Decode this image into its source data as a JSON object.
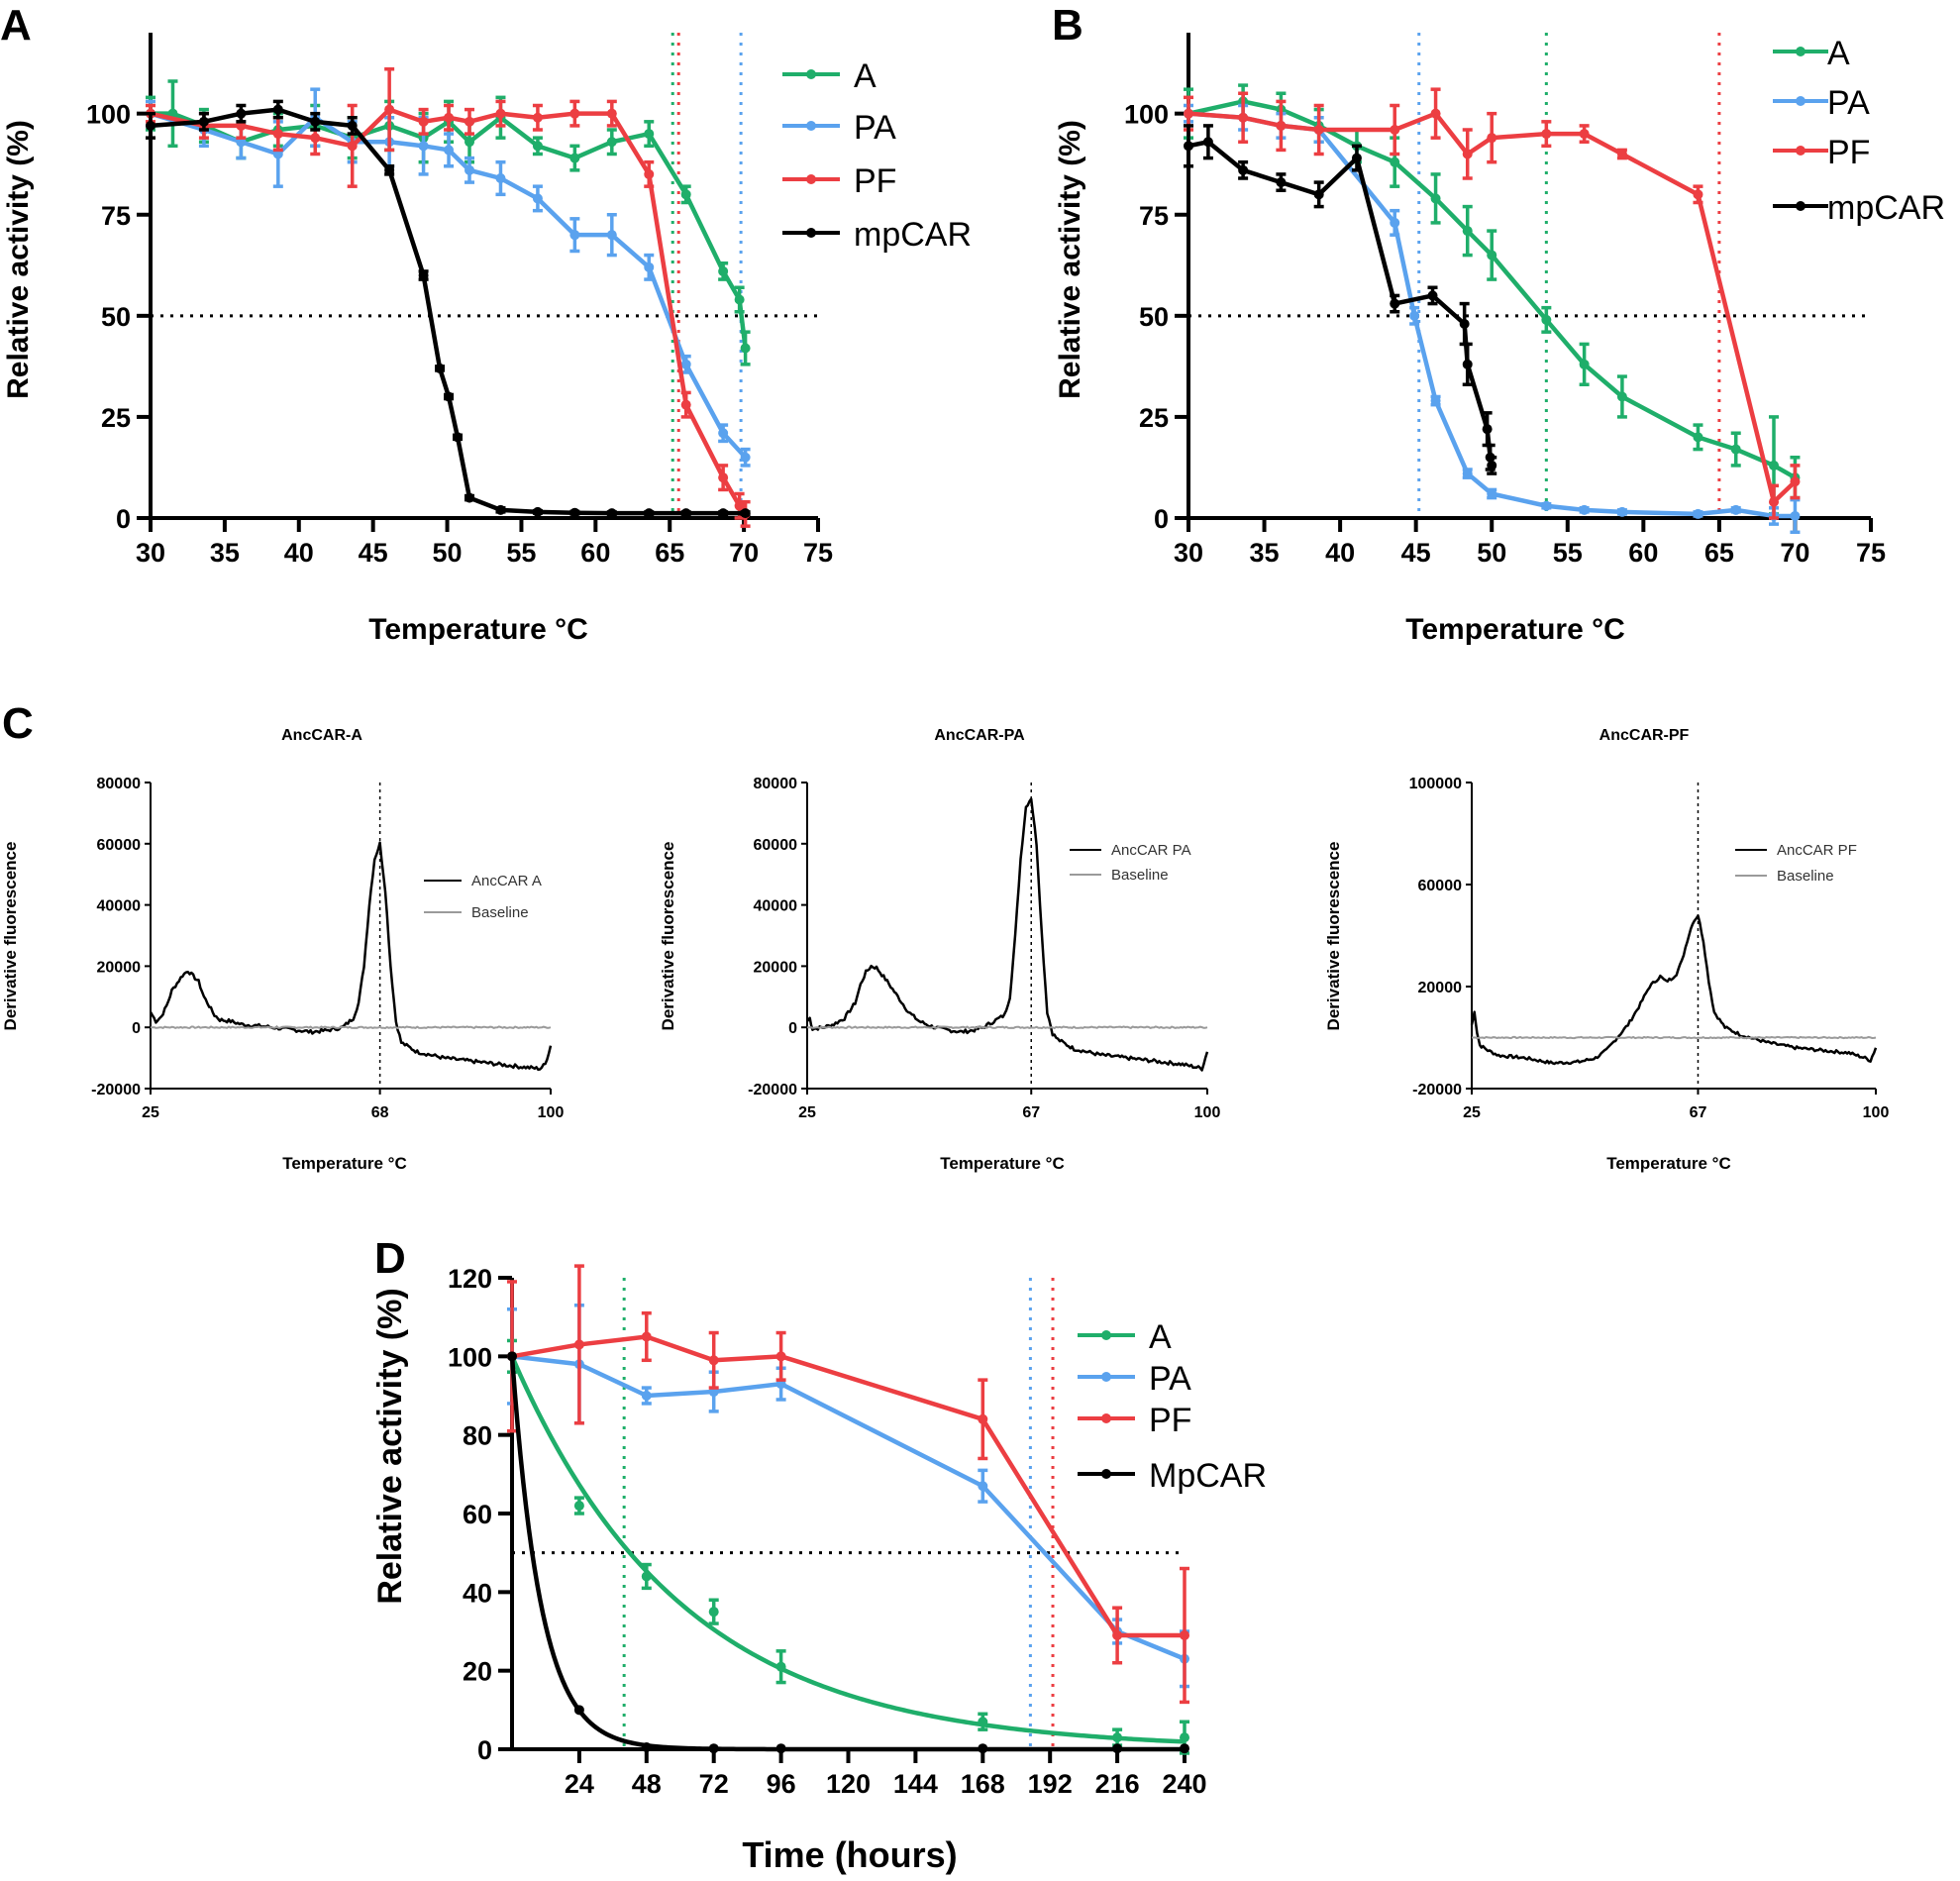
{
  "panel_labels": {
    "a": "A",
    "b": "B",
    "c": "C",
    "d": "D"
  },
  "colors": {
    "A": "#1fae6a",
    "PA": "#5aa2ee",
    "PF": "#ec3e42",
    "black": "#000000",
    "baseline": "#9a9a9a"
  },
  "chart_data": [
    {
      "id": "A",
      "type": "line",
      "xlabel": "Temperature  °C",
      "ylabel": "Relative activity (%)",
      "xlim": [
        30,
        75
      ],
      "ylim": [
        0,
        120
      ],
      "xticks": [
        "30",
        "35",
        "40",
        "45",
        "50",
        "55",
        "60",
        "65",
        "70",
        "75"
      ],
      "yticks": [
        "0",
        "25",
        "50",
        "75",
        "100"
      ],
      "hline": 50,
      "vlines": [
        {
          "x": 65.2,
          "color": "#1fae6a"
        },
        {
          "x": 65.6,
          "color": "#ec3e42"
        },
        {
          "x": 69.8,
          "color": "#5aa2ee"
        }
      ],
      "legend": [
        "A",
        "PA",
        "PF",
        "mpCAR"
      ],
      "series": [
        {
          "name": "A",
          "color": "#1fae6a",
          "x": [
            30,
            31.5,
            33.6,
            36.1,
            38.6,
            41.1,
            43.6,
            46.1,
            48.4,
            50.1,
            51.5,
            53.6,
            56.1,
            58.6,
            61.1,
            63.6,
            66.1,
            68.6,
            69.7,
            70.1
          ],
          "y": [
            100,
            100,
            97,
            93,
            96,
            97,
            94,
            97,
            94,
            98,
            93,
            99,
            92,
            89,
            93,
            95,
            80,
            61,
            54,
            42
          ],
          "err": [
            4,
            8,
            4,
            4,
            4,
            5,
            5,
            6,
            6,
            5,
            5,
            5,
            2,
            3,
            3,
            3,
            2,
            2,
            3,
            4
          ]
        },
        {
          "name": "PA",
          "color": "#5aa2ee",
          "x": [
            30,
            33.6,
            36.1,
            38.6,
            41.1,
            43.6,
            46.1,
            48.4,
            50.1,
            51.5,
            53.6,
            56.1,
            58.6,
            61.1,
            63.6,
            66.1,
            68.6,
            70.1
          ],
          "y": [
            100,
            96,
            93,
            90,
            99,
            93,
            93,
            92,
            91,
            86,
            84,
            79,
            70,
            70,
            62,
            38,
            21,
            15
          ],
          "err": [
            3,
            4,
            4,
            8,
            7,
            5,
            6,
            7,
            4,
            3,
            4,
            3,
            4,
            5,
            3,
            2,
            2,
            2
          ]
        },
        {
          "name": "PF",
          "color": "#ec3e42",
          "x": [
            30,
            33.6,
            36.1,
            38.6,
            41.1,
            43.6,
            46.1,
            48.4,
            50.1,
            51.5,
            53.6,
            56.1,
            58.6,
            61.1,
            63.6,
            66.1,
            68.6,
            69.7,
            70.1
          ],
          "y": [
            100,
            97,
            97,
            95,
            94,
            92,
            101,
            98,
            99,
            98,
            100,
            99,
            100,
            100,
            85,
            28,
            10,
            3,
            1
          ],
          "err": [
            2,
            3,
            3,
            4,
            4,
            10,
            10,
            3,
            3,
            3,
            3,
            3,
            3,
            3,
            3,
            3,
            3,
            3,
            3
          ]
        },
        {
          "name": "mpCAR",
          "color": "#000000",
          "x": [
            30,
            33.6,
            36.1,
            38.6,
            41.1,
            43.6,
            46.1,
            48.4,
            49.5,
            50.1,
            50.7,
            51.5,
            53.6,
            56.1,
            58.6,
            61.1,
            63.6,
            66.1,
            68.6,
            70.1
          ],
          "y": [
            97,
            98,
            100,
            101,
            98,
            97,
            86,
            60,
            37,
            30,
            20,
            5,
            2,
            1.5,
            1.3,
            1.2,
            1.2,
            1.2,
            1.2,
            1.2
          ],
          "err": [
            3,
            2,
            2,
            2,
            2,
            2,
            1,
            1,
            0.5,
            0.5,
            0.5,
            0.5,
            0.5,
            0.3,
            0.3,
            0.3,
            0.3,
            0.3,
            0.3,
            0.3
          ]
        }
      ]
    },
    {
      "id": "B",
      "type": "line",
      "xlabel": "Temperature  °C",
      "ylabel": "Relative activity (%)",
      "xlim": [
        30,
        75
      ],
      "ylim": [
        0,
        120
      ],
      "xticks": [
        "30",
        "35",
        "40",
        "45",
        "50",
        "55",
        "60",
        "65",
        "70",
        "75"
      ],
      "yticks": [
        "0",
        "25",
        "50",
        "75",
        "100"
      ],
      "hline": 50,
      "vlines": [
        {
          "x": 45.2,
          "color": "#5aa2ee"
        },
        {
          "x": 53.6,
          "color": "#1fae6a"
        },
        {
          "x": 65,
          "color": "#ec3e42"
        }
      ],
      "legend": [
        "A",
        "PA",
        "PF",
        "mpCAR"
      ],
      "series": [
        {
          "name": "A",
          "color": "#1fae6a",
          "x": [
            30,
            33.6,
            36.1,
            38.6,
            41.1,
            43.6,
            46.3,
            48.4,
            50,
            53.6,
            56.1,
            58.6,
            63.6,
            66.1,
            68.6,
            70
          ],
          "y": [
            100,
            103,
            101,
            97,
            92,
            88,
            79,
            71,
            65,
            49,
            38,
            30,
            20,
            17,
            13,
            10
          ],
          "err": [
            6,
            4,
            4,
            4,
            4,
            6,
            6,
            6,
            6,
            3,
            5,
            5,
            3,
            4,
            12,
            5
          ]
        },
        {
          "name": "PA",
          "color": "#5aa2ee",
          "x": [
            30,
            33.6,
            36.1,
            38.6,
            43.6,
            44.9,
            46.3,
            48.4,
            50,
            53.6,
            56.1,
            58.6,
            63.6,
            66.1,
            68.6,
            70
          ],
          "y": [
            100,
            99,
            97,
            96,
            73,
            50,
            29,
            11,
            6,
            3,
            2,
            1.5,
            1,
            2,
            0.5,
            0.5
          ],
          "err": [
            2,
            3,
            3,
            3,
            3,
            2,
            1,
            1,
            1,
            0.5,
            0.5,
            0.5,
            0.5,
            0.5,
            2,
            4
          ]
        },
        {
          "name": "PF",
          "color": "#ec3e42",
          "x": [
            30,
            33.6,
            36.1,
            38.6,
            43.6,
            46.3,
            48.4,
            50,
            53.6,
            56.1,
            58.6,
            63.6,
            68.6,
            70
          ],
          "y": [
            100,
            99,
            97,
            96,
            96,
            100,
            90,
            94,
            95,
            95,
            90,
            80,
            4,
            9
          ],
          "err": [
            4,
            6,
            6,
            6,
            6,
            6,
            6,
            6,
            3,
            2,
            1,
            2,
            4,
            4
          ]
        },
        {
          "name": "mpCAR",
          "color": "#000000",
          "x": [
            30,
            31.3,
            33.6,
            36.1,
            38.6,
            41.1,
            43.6,
            46.1,
            48.2,
            48.4,
            49.7,
            49.9,
            50
          ],
          "y": [
            92,
            93,
            86,
            83,
            80,
            89,
            53,
            55,
            48,
            38,
            22,
            15,
            13
          ],
          "err": [
            5,
            4,
            2,
            2,
            3,
            3,
            2,
            2,
            5,
            5,
            4,
            3,
            2
          ]
        }
      ]
    },
    {
      "id": "C1",
      "type": "line",
      "title": "AncCAR-A",
      "xlabel": "Temperature °C",
      "ylabel": "Derivative fluorescence",
      "xlim": [
        25,
        100
      ],
      "ylim": [
        -20000,
        80000
      ],
      "xticks": [
        "25",
        "68",
        "100"
      ],
      "yticks": [
        "-20000",
        "0",
        "20000",
        "40000",
        "60000",
        "80000"
      ],
      "peak_x": 68,
      "peak_y": 60000,
      "vline": 68,
      "legend": [
        "AncCAR A",
        "Baseline"
      ],
      "series": [
        {
          "name": "AncCAR A",
          "color": "#000000",
          "x": [
            25,
            26,
            27,
            28,
            29,
            31,
            32,
            34,
            35,
            36,
            37,
            38,
            40,
            42,
            45,
            48,
            50,
            53,
            55,
            58,
            61,
            63,
            64,
            65,
            66,
            67,
            68,
            69,
            70,
            71,
            72,
            75,
            80,
            85,
            90,
            95,
            98,
            99,
            100
          ],
          "y": [
            5000,
            2000,
            3500,
            7000,
            12000,
            17000,
            18500,
            15000,
            10000,
            7000,
            4000,
            2500,
            2000,
            1000,
            500,
            0,
            -500,
            -1000,
            -1500,
            -1000,
            0,
            3000,
            8000,
            20000,
            40000,
            55000,
            60000,
            45000,
            20000,
            2000,
            -5000,
            -8000,
            -10000,
            -11000,
            -12000,
            -13000,
            -13500,
            -12000,
            -6000
          ]
        },
        {
          "name": "Baseline",
          "color": "#9a9a9a",
          "x": [
            25,
            100
          ],
          "y": [
            0,
            0
          ]
        }
      ]
    },
    {
      "id": "C2",
      "type": "line",
      "title": "AncCAR-PA",
      "xlabel": "Temperature °C",
      "ylabel": "Derivative fluorescence",
      "xlim": [
        25,
        100
      ],
      "ylim": [
        -20000,
        80000
      ],
      "xticks": [
        "25",
        "67",
        "100"
      ],
      "yticks": [
        "-20000",
        "0",
        "20000",
        "40000",
        "60000",
        "80000"
      ],
      "peak_x": 67,
      "peak_y": 75000,
      "vline": 67,
      "legend": [
        "AncCAR PA",
        "Baseline"
      ],
      "series": [
        {
          "name": "AncCAR PA",
          "color": "#000000",
          "x": [
            25,
            25.5,
            26,
            28,
            30,
            32,
            34,
            35,
            36,
            37,
            38,
            40,
            42,
            44,
            46,
            48,
            50,
            52,
            54,
            56,
            58,
            60,
            62,
            63,
            64,
            65,
            66,
            67,
            68,
            69,
            70,
            71,
            72,
            75,
            80,
            85,
            90,
            95,
            98,
            99,
            100
          ],
          "y": [
            2000,
            3000,
            -500,
            0,
            1000,
            3000,
            8000,
            14000,
            18000,
            20000,
            19500,
            15000,
            10000,
            5000,
            2000,
            500,
            -500,
            -1000,
            -1500,
            -1000,
            0,
            2000,
            4000,
            10000,
            30000,
            55000,
            72000,
            75000,
            60000,
            30000,
            5000,
            -2000,
            -4000,
            -7000,
            -9000,
            -10000,
            -11000,
            -12000,
            -13000,
            -13500,
            -8000
          ]
        },
        {
          "name": "Baseline",
          "color": "#9a9a9a",
          "x": [
            25,
            100
          ],
          "y": [
            0,
            0
          ]
        }
      ]
    },
    {
      "id": "C3",
      "type": "line",
      "title": "AncCAR-PF",
      "xlabel": "Temperature °C",
      "ylabel": "Derivative fluorescence",
      "xlim": [
        25,
        100
      ],
      "ylim": [
        -20000,
        100000
      ],
      "xticks": [
        "25",
        "67",
        "100"
      ],
      "yticks": [
        "-20000",
        "20000",
        "60000",
        "100000"
      ],
      "peak_x": 67,
      "peak_y": 48000,
      "vline": 67,
      "legend": [
        "AncCAR PF",
        "Baseline"
      ],
      "series": [
        {
          "name": "AncCAR PF",
          "color": "#000000",
          "x": [
            25,
            25.5,
            26,
            26.5,
            28,
            30,
            35,
            40,
            45,
            48,
            50,
            52,
            54,
            56,
            58,
            60,
            61,
            62,
            63,
            64,
            65,
            66,
            67,
            68,
            69,
            70,
            72,
            75,
            80,
            85,
            90,
            95,
            98,
            99,
            100
          ],
          "y": [
            5000,
            10000,
            2000,
            -3000,
            -5000,
            -7000,
            -8000,
            -10000,
            -9500,
            -8000,
            -5000,
            0,
            5000,
            12000,
            20000,
            24000,
            22000,
            23000,
            25000,
            30000,
            38000,
            45000,
            48000,
            38000,
            22000,
            10000,
            4000,
            1000,
            -2000,
            -4000,
            -5000,
            -6000,
            -8000,
            -9000,
            -4000
          ]
        },
        {
          "name": "Baseline",
          "color": "#9a9a9a",
          "x": [
            25,
            100
          ],
          "y": [
            0,
            0
          ]
        }
      ]
    },
    {
      "id": "D",
      "type": "line",
      "xlabel": "Time (hours)",
      "ylabel": "Relative activity (%)",
      "xlim": [
        0,
        240
      ],
      "ylim": [
        0,
        120
      ],
      "xticks": [
        "24",
        "48",
        "72",
        "96",
        "120",
        "144",
        "168",
        "192",
        "216",
        "240"
      ],
      "yticks": [
        "0",
        "20",
        "40",
        "60",
        "80",
        "100",
        "120"
      ],
      "hline": 50,
      "vlines": [
        {
          "x": 40,
          "color": "#1fae6a"
        },
        {
          "x": 185,
          "color": "#5aa2ee"
        },
        {
          "x": 193,
          "color": "#ec3e42"
        }
      ],
      "legend": [
        "A",
        "PA",
        "PF",
        "MpCAR"
      ],
      "series": [
        {
          "name": "A",
          "color": "#1fae6a",
          "fit": "exp",
          "x": [
            0,
            24,
            48,
            72,
            96,
            168,
            216,
            240
          ],
          "y": [
            100,
            62,
            44,
            35,
            21,
            7,
            3,
            3
          ],
          "err": [
            4,
            2,
            3,
            3,
            4,
            2,
            2,
            4
          ]
        },
        {
          "name": "PA",
          "color": "#5aa2ee",
          "x": [
            0,
            24,
            48,
            72,
            96,
            168,
            216,
            240
          ],
          "y": [
            100,
            98,
            90,
            91,
            93,
            67,
            30,
            23
          ],
          "err": [
            12,
            15,
            2,
            5,
            4,
            4,
            3,
            7
          ]
        },
        {
          "name": "PF",
          "color": "#ec3e42",
          "x": [
            0,
            24,
            48,
            72,
            96,
            168,
            216,
            240
          ],
          "y": [
            100,
            103,
            105,
            99,
            100,
            84,
            29,
            29
          ],
          "err": [
            19,
            20,
            6,
            7,
            6,
            10,
            7,
            17
          ]
        },
        {
          "name": "MpCAR",
          "color": "#000000",
          "fit": "exp",
          "x": [
            0,
            24,
            48,
            72,
            96,
            168,
            216,
            240
          ],
          "y": [
            100,
            10,
            0.5,
            0.2,
            0.2,
            0.2,
            0.2,
            0.2
          ],
          "err": [
            0,
            0,
            0,
            0,
            0,
            0,
            0,
            0
          ]
        }
      ]
    }
  ]
}
